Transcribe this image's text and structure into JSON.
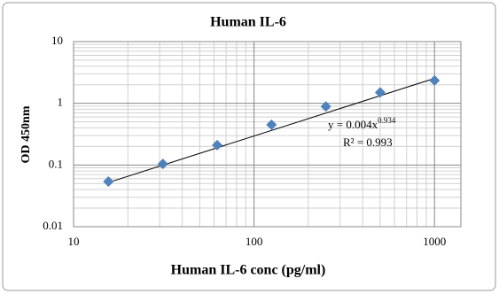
{
  "chart_data": {
    "type": "scatter",
    "title": "Human IL-6",
    "x_label": "Human IL-6 conc (pg/ml)",
    "y_label": "OD 450nm",
    "log_x": true,
    "log_y": true,
    "grid": true,
    "minor_grid": true,
    "xlim": [
      10,
      1400
    ],
    "ylim": [
      0.01,
      10
    ],
    "xticks": [
      10,
      100,
      1000
    ],
    "yticks": [
      0.01,
      0.1,
      1,
      10
    ],
    "series": [
      {
        "name": "Human IL-6",
        "color": "#4f81bd",
        "x": [
          15.6,
          31.25,
          62.5,
          125,
          250,
          500,
          1000
        ],
        "values": [
          0.054,
          0.104,
          0.21,
          0.45,
          0.89,
          1.5,
          2.35
        ]
      }
    ],
    "trendline": {
      "coefficient": 0.004,
      "exponent": 0.934,
      "label": "y = 0.004x",
      "r2_label": "R² = 0.993"
    }
  }
}
